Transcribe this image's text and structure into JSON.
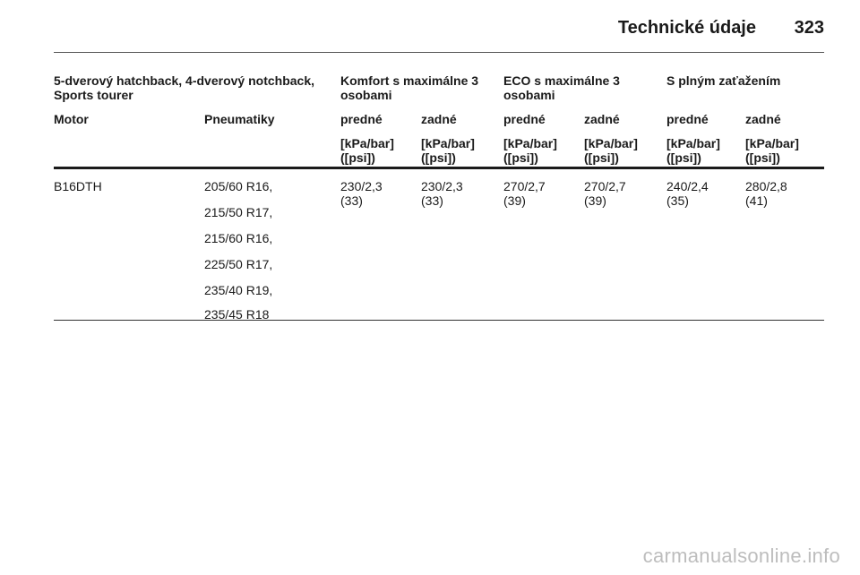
{
  "header": {
    "title": "Technické údaje",
    "page_number": "323"
  },
  "table": {
    "group_headers": [
      "5-dverový hatchback, 4-dverový notchback, Sports tourer",
      "Komfort s maximálne 3 osobami",
      "ECO s maximálne 3 osobami",
      "S plným zaťažením"
    ],
    "columns": {
      "motor": "Motor",
      "tires": "Pneumatiky",
      "front": "predné",
      "rear": "zadné",
      "unit_line1": "[kPa/bar]",
      "unit_line2": "([psi])"
    },
    "row": {
      "engine": "B16DTH",
      "tires": [
        "205/60 R16,",
        "215/50 R17,",
        "215/60 R16,",
        "225/50 R17,",
        "235/40 R19,",
        "235/45 R18"
      ],
      "values": [
        {
          "main": "230/2,3",
          "psi": "(33)"
        },
        {
          "main": "230/2,3",
          "psi": "(33)"
        },
        {
          "main": "270/2,7",
          "psi": "(39)"
        },
        {
          "main": "270/2,7",
          "psi": "(39)"
        },
        {
          "main": "240/2,4",
          "psi": "(35)"
        },
        {
          "main": "280/2,8",
          "psi": "(41)"
        }
      ]
    }
  },
  "watermark": "carmanualsonline.info"
}
